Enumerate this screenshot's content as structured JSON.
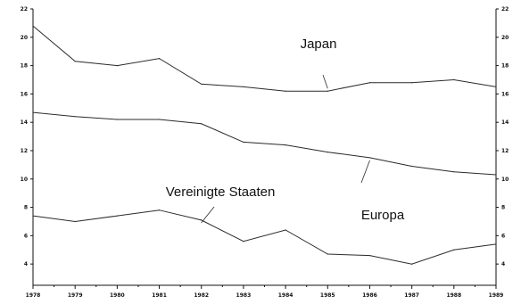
{
  "chart_data": {
    "type": "line",
    "title": "",
    "xlabel": "",
    "ylabel": "",
    "x": [
      "1978",
      "1979",
      "1980",
      "1981",
      "1982",
      "1983",
      "1984",
      "1985",
      "1986",
      "1987",
      "1988",
      "1989"
    ],
    "xlim": [
      1978,
      1989
    ],
    "ylim": [
      2.5,
      22
    ],
    "yticks": [
      4,
      6,
      8,
      10,
      12,
      14,
      16,
      18,
      20,
      22
    ],
    "ytick_labels_left": [
      "4",
      "6",
      "8",
      "10",
      "12",
      "14",
      "16",
      "18",
      "20",
      "22"
    ],
    "ytick_labels_right": [
      "4",
      "6",
      "8",
      "10",
      "12",
      "14",
      "16",
      "18",
      "20",
      "22"
    ],
    "grid": false,
    "legend": "none",
    "colors": {
      "line": "#2a2a2a",
      "axis": "#111111",
      "text": "#111111"
    },
    "series": [
      {
        "name": "Japan",
        "values": [
          20.8,
          18.3,
          18.0,
          18.5,
          16.7,
          16.5,
          16.2,
          16.2,
          16.8,
          16.8,
          17.0,
          16.5
        ]
      },
      {
        "name": "Europa",
        "values": [
          14.7,
          14.4,
          14.2,
          14.2,
          13.9,
          12.6,
          12.4,
          11.9,
          11.5,
          10.9,
          10.5,
          10.3
        ]
      },
      {
        "name": "Vereinigte Staaten",
        "values": [
          7.4,
          7.0,
          7.4,
          7.8,
          7.1,
          5.6,
          6.4,
          4.7,
          4.6,
          4.0,
          5.0,
          5.4
        ]
      }
    ],
    "annotations": [
      {
        "text": "Japan",
        "series": "Japan",
        "x": "1985"
      },
      {
        "text": "Europa",
        "series": "Europa",
        "x": "1986"
      },
      {
        "text": "Vereinigte Staaten",
        "series": "Vereinigte Staaten",
        "x": "1982"
      }
    ]
  }
}
